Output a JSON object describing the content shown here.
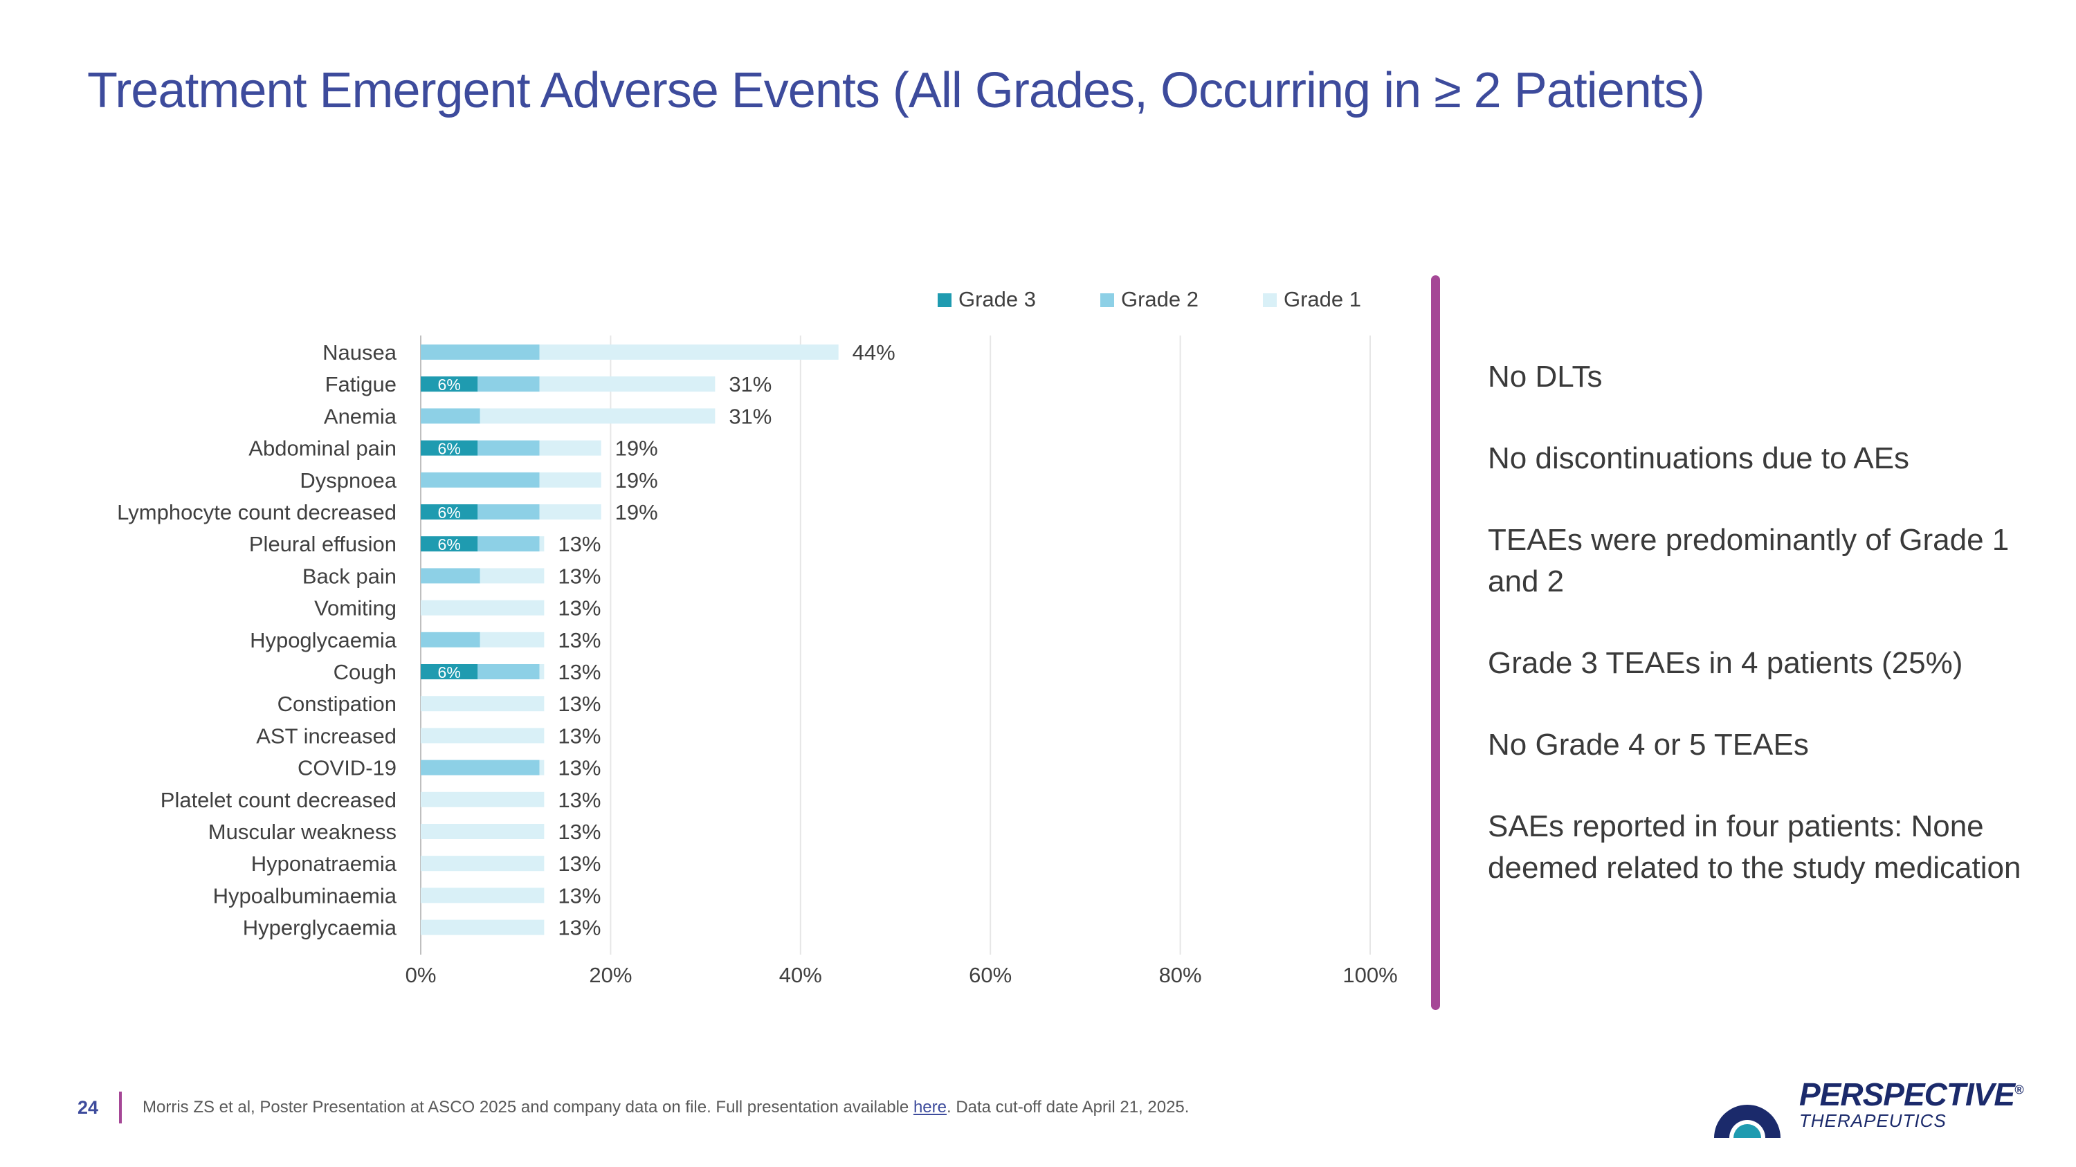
{
  "slide": {
    "title": "Treatment Emergent Adverse Events (All Grades, Occurring in ≥ 2 Patients)",
    "page_number": "24",
    "footnote_before": "Morris ZS et al, Poster Presentation at ASCO 2025 and company data on file. Full presentation available ",
    "footnote_link": "here",
    "footnote_after": ". Data cut-off date April 21, 2025.",
    "logo": {
      "main": "PERSPECTIVE",
      "reg": "®",
      "sub": "THERAPEUTICS"
    }
  },
  "bullets": [
    "No DLTs",
    "No discontinuations due to AEs",
    "TEAEs were predominantly of Grade 1 and 2",
    "Grade 3 TEAEs in 4 patients (25%)",
    "No Grade 4  or 5 TEAEs",
    "SAEs reported in four patients: None deemed related to the study medication"
  ],
  "colors": {
    "grade3": "#1f9bb0",
    "grade2": "#8dd0e6",
    "grade1": "#d9f0f7",
    "title": "#3d4b9c",
    "accent": "#a54796"
  },
  "chart_data": {
    "type": "bar",
    "orientation": "horizontal",
    "stacked": true,
    "title": "",
    "xlabel": "",
    "ylabel": "",
    "xlim": [
      0,
      100
    ],
    "x_ticks": [
      "0%",
      "20%",
      "40%",
      "60%",
      "80%",
      "100%"
    ],
    "grid": true,
    "legend_position": "top-right",
    "categories": [
      "Nausea",
      "Fatigue",
      "Anemia",
      "Abdominal pain",
      "Dyspnoea",
      "Lymphocyte count decreased",
      "Pleural effusion",
      "Back pain",
      "Vomiting",
      "Hypoglycaemia",
      "Cough",
      "Constipation",
      "AST increased",
      "COVID-19",
      "Platelet count decreased",
      "Muscular weakness",
      "Hyponatraemia",
      "Hypoalbuminaemia",
      "Hyperglycaemia"
    ],
    "series": [
      {
        "name": "Grade 3",
        "values": [
          0,
          6,
          0,
          6,
          0,
          6,
          6,
          0,
          0,
          0,
          6,
          0,
          0,
          0,
          0,
          0,
          0,
          0,
          0
        ]
      },
      {
        "name": "Grade 2",
        "values": [
          12.5,
          6.5,
          6.25,
          6.5,
          12.5,
          6.5,
          6.5,
          6.25,
          0,
          6.25,
          6.5,
          0,
          0,
          12.5,
          0,
          0,
          0,
          0,
          0
        ]
      },
      {
        "name": "Grade 1",
        "values": [
          31.5,
          18.5,
          24.75,
          6.5,
          6.5,
          6.5,
          0.5,
          6.75,
          13,
          6.75,
          0.5,
          13,
          13,
          0.5,
          13,
          13,
          13,
          13,
          13
        ]
      }
    ],
    "segment_labels": {
      "Grade 3": [
        "",
        "6%",
        "",
        "6%",
        "",
        "6%",
        "6%",
        "",
        "",
        "",
        "6%",
        "",
        "",
        "",
        "",
        "",
        "",
        "",
        ""
      ]
    },
    "total_labels": [
      "44%",
      "31%",
      "31%",
      "19%",
      "19%",
      "19%",
      "13%",
      "13%",
      "13%",
      "13%",
      "13%",
      "13%",
      "13%",
      "13%",
      "13%",
      "13%",
      "13%",
      "13%",
      "13%"
    ]
  }
}
